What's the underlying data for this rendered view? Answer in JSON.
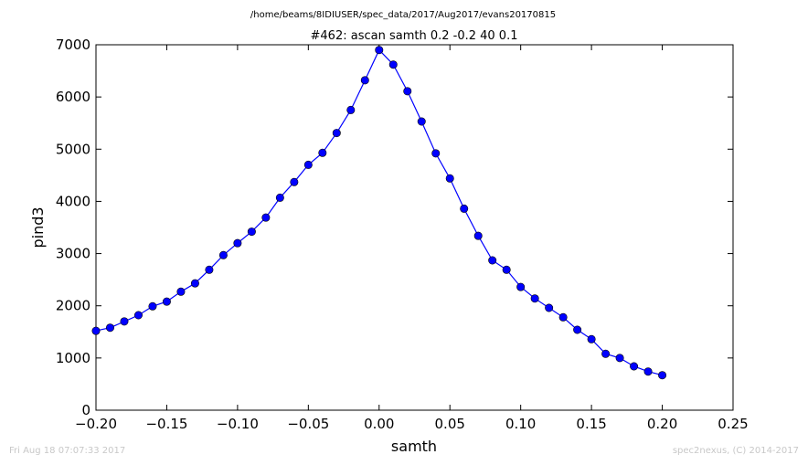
{
  "header": {
    "file_path": "/home/beams/8IDIUSER/spec_data/2017/Aug2017/evans20170815"
  },
  "footer": {
    "timestamp": "Fri Aug 18 07:07:33 2017",
    "credit": "spec2nexus, (C) 2014-2017"
  },
  "chart_data": {
    "type": "line",
    "title": "#462: ascan  samth 0.2 -0.2  40 0.1",
    "xlabel": "samth",
    "ylabel": "pind3",
    "xlim": [
      -0.2,
      0.25
    ],
    "ylim": [
      0,
      7000
    ],
    "x_ticks": [
      "−0.20",
      "−0.15",
      "−0.10",
      "−0.05",
      "0.00",
      "0.05",
      "0.10",
      "0.15",
      "0.20",
      "0.25"
    ],
    "x_tick_values": [
      -0.2,
      -0.15,
      -0.1,
      -0.05,
      0.0,
      0.05,
      0.1,
      0.15,
      0.2,
      0.25
    ],
    "y_ticks": [
      "0",
      "1000",
      "2000",
      "3000",
      "4000",
      "5000",
      "6000",
      "7000"
    ],
    "y_tick_values": [
      0,
      1000,
      2000,
      3000,
      4000,
      5000,
      6000,
      7000
    ],
    "grid": false,
    "series": [
      {
        "color": "#0000ff",
        "marker": "circle",
        "x": [
          -0.2,
          -0.19,
          -0.18,
          -0.17,
          -0.16,
          -0.15,
          -0.14,
          -0.13,
          -0.12,
          -0.11,
          -0.1,
          -0.09,
          -0.08,
          -0.07,
          -0.06,
          -0.05,
          -0.04,
          -0.03,
          -0.02,
          -0.01,
          0.0,
          0.01,
          0.02,
          0.03,
          0.04,
          0.05,
          0.06,
          0.07,
          0.08,
          0.09,
          0.1,
          0.11,
          0.12,
          0.13,
          0.14,
          0.15,
          0.16,
          0.17,
          0.18,
          0.19,
          0.2
        ],
        "y": [
          1520,
          1580,
          1700,
          1820,
          1990,
          2080,
          2270,
          2430,
          2690,
          2970,
          3200,
          3420,
          3690,
          4070,
          4370,
          4700,
          4930,
          5310,
          5750,
          6320,
          6900,
          6620,
          6110,
          5530,
          4920,
          4440,
          3860,
          3340,
          2870,
          2690,
          2360,
          2140,
          1960,
          1780,
          1540,
          1360,
          1080,
          1000,
          840,
          740,
          670
        ]
      }
    ]
  }
}
